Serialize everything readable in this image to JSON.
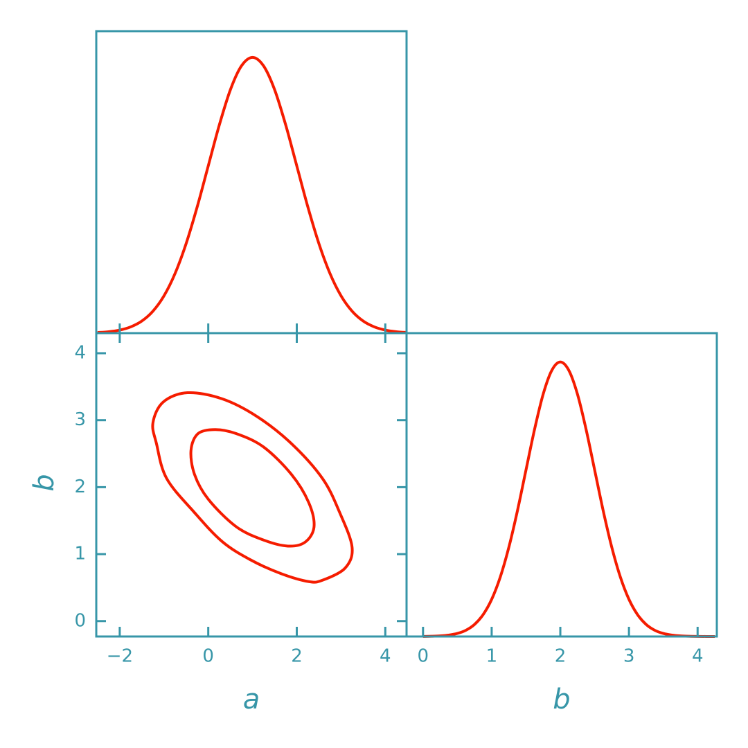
{
  "chart_data": [
    {
      "type": "line",
      "color": "#f51c00",
      "x": [
        -2.5,
        -2.25,
        -2,
        -1.75,
        -1.5,
        -1.25,
        -1,
        -0.75,
        -0.5,
        -0.25,
        0,
        0.25,
        0.5,
        0.75,
        1,
        1.25,
        1.5,
        1.75,
        2,
        2.25,
        2.5,
        2.75,
        3,
        3.25,
        3.5,
        3.75,
        4,
        4.25,
        4.5
      ],
      "values": [
        0.0022,
        0.0051,
        0.0111,
        0.0228,
        0.0439,
        0.0796,
        0.1353,
        0.2163,
        0.3247,
        0.4578,
        0.6065,
        0.7548,
        0.8825,
        0.969,
        1,
        0.969,
        0.8825,
        0.7548,
        0.6065,
        0.4578,
        0.3247,
        0.2163,
        0.1353,
        0.0796,
        0.0439,
        0.0228,
        0.0111,
        0.0051,
        0.0022
      ],
      "xlim": [
        -2.53,
        4.48
      ],
      "ylim": [
        0,
        1.095
      ],
      "xticks": [
        -2,
        0,
        2,
        4
      ]
    },
    {
      "type": "contour",
      "color": "#f51c00",
      "xlabel": "a",
      "ylabel": "b",
      "xlim": [
        -2.53,
        4.48
      ],
      "ylim": [
        -0.23,
        4.3
      ],
      "xticks": [
        {
          "value": -2,
          "label": "−2"
        },
        0,
        2,
        4
      ],
      "yticks": [
        0,
        1,
        2,
        3,
        4
      ],
      "series": [
        {
          "x": [
            -0.39,
            -0.23,
            0.16,
            0.63,
            1.25,
            1.88,
            2.27,
            2.39,
            2.19,
            1.8,
            1.25,
            0.63,
            0,
            -0.31
          ],
          "values": [
            2.55,
            2.8,
            2.86,
            2.8,
            2.6,
            2.19,
            1.77,
            1.41,
            1.18,
            1.12,
            1.21,
            1.41,
            1.82,
            2.19
          ]
        },
        {
          "x": [
            -1.25,
            -1.02,
            -0.47,
            0.31,
            1.09,
            1.88,
            2.58,
            2.97,
            3.25,
            3.09,
            2.58,
            2.27,
            1.64,
            0.94,
            0.31,
            -0.31,
            -0.94,
            -1.17
          ],
          "values": [
            2.96,
            3.27,
            3.41,
            3.32,
            3.06,
            2.65,
            2.13,
            1.62,
            1.1,
            0.79,
            0.61,
            0.59,
            0.71,
            0.92,
            1.19,
            1.62,
            2.13,
            2.65
          ]
        }
      ]
    },
    {
      "type": "line",
      "color": "#f51c00",
      "xlabel": "b",
      "x": [
        0,
        0.125,
        0.25,
        0.375,
        0.5,
        0.625,
        0.75,
        0.875,
        1,
        1.125,
        1.25,
        1.375,
        1.5,
        1.625,
        1.75,
        1.875,
        2,
        2.125,
        2.25,
        2.375,
        2.5,
        2.625,
        2.75,
        2.875,
        3,
        3.125,
        3.25,
        3.375,
        3.5,
        3.625,
        3.75,
        3.875,
        4,
        4.125,
        4.25
      ],
      "values": [
        0.0003,
        0.0009,
        0.0022,
        0.0051,
        0.0111,
        0.0228,
        0.0439,
        0.0796,
        0.1353,
        0.2163,
        0.3247,
        0.4578,
        0.6065,
        0.7548,
        0.8825,
        0.969,
        1,
        0.969,
        0.8825,
        0.7548,
        0.6065,
        0.4578,
        0.3247,
        0.2163,
        0.1353,
        0.0796,
        0.0439,
        0.0228,
        0.0111,
        0.0051,
        0.0022,
        0.0009,
        0.0003,
        0.0001,
        0
      ],
      "xlim": [
        -0.24,
        4.28
      ],
      "ylim": [
        0,
        1.105
      ],
      "xticks": [
        0,
        1,
        2,
        3,
        4
      ]
    }
  ]
}
